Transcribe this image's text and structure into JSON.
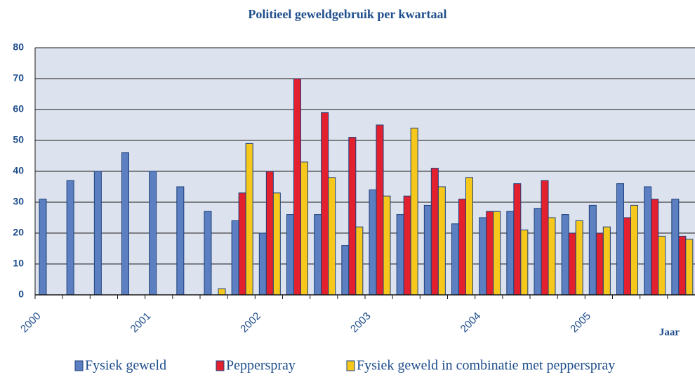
{
  "chart_data": {
    "type": "bar",
    "title": "Politieel geweldgebruik per kwartaal",
    "x_label": "Jaar",
    "categories": [
      "2000",
      null,
      null,
      null,
      "2001",
      null,
      null,
      null,
      "2002",
      null,
      null,
      null,
      "2003",
      null,
      null,
      null,
      "2004",
      null,
      null,
      null,
      "2005",
      null,
      null,
      null
    ],
    "series": [
      {
        "name": "Fysiek geweld",
        "color": "#5b7fc0",
        "values": [
          31,
          37,
          40,
          46,
          40,
          35,
          27,
          24,
          20,
          26,
          26,
          16,
          34,
          26,
          29,
          23,
          25,
          27,
          28,
          26,
          29,
          36,
          35,
          31
        ]
      },
      {
        "name": "Pepperspray",
        "color": "#e2202e",
        "values": [
          null,
          null,
          null,
          null,
          null,
          null,
          null,
          33,
          40,
          70,
          59,
          51,
          55,
          32,
          41,
          31,
          27,
          36,
          37,
          20,
          20,
          25,
          31,
          19
        ]
      },
      {
        "name": "Fysiek geweld in combinatie met pepperspray",
        "color": "#f7c81c",
        "values": [
          null,
          null,
          null,
          null,
          null,
          null,
          2,
          49,
          33,
          43,
          38,
          22,
          32,
          54,
          35,
          38,
          27,
          21,
          25,
          24,
          22,
          29,
          19,
          18
        ]
      }
    ],
    "ylim": [
      0,
      80
    ],
    "yticks": [
      0,
      10,
      20,
      30,
      40,
      50,
      60,
      70,
      80
    ],
    "grid": true
  }
}
